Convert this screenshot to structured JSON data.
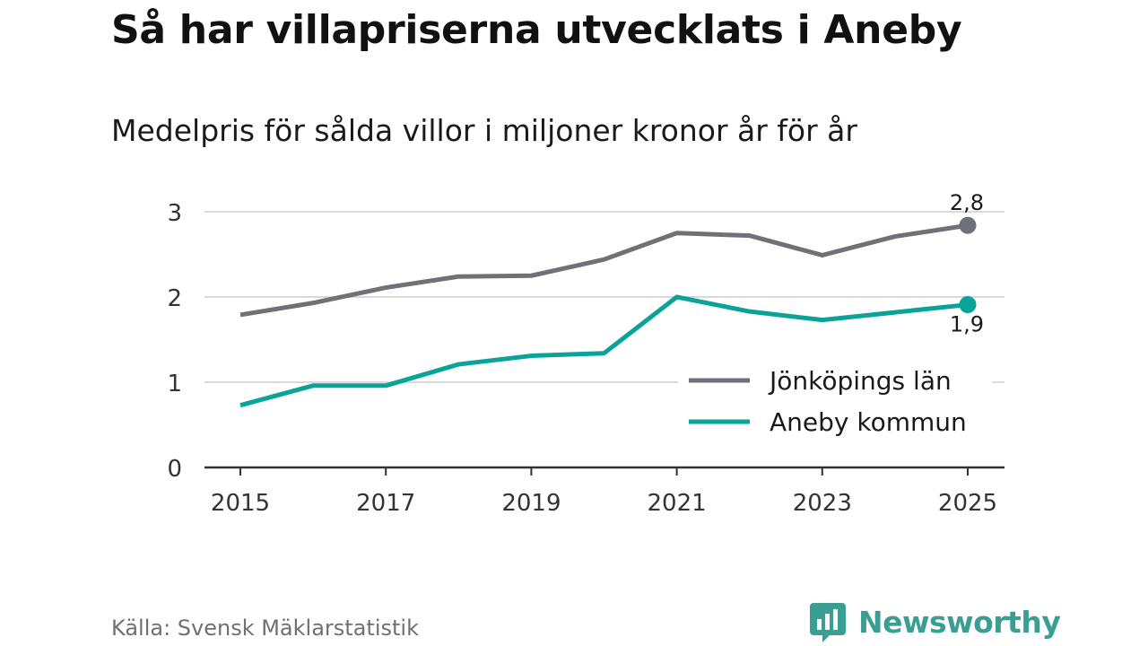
{
  "title": "Så har villapriserna utvecklats i Aneby",
  "subtitle": "Medelpris för sålda villor i miljoner kronor år för år",
  "source": "Källa: Svensk Mäklarstatistik",
  "brand": {
    "name": "Newsworthy",
    "icon": "newsworthy-logo-icon",
    "color": "#3a9e93"
  },
  "chart_data": {
    "type": "line",
    "title": "Så har villapriserna utvecklats i Aneby",
    "subtitle": "Medelpris för sålda villor i miljoner kronor år för år",
    "xlabel": "",
    "ylabel": "",
    "x": [
      2015,
      2016,
      2017,
      2018,
      2019,
      2020,
      2021,
      2022,
      2023,
      2024,
      2025
    ],
    "x_ticks": [
      "2015",
      "2017",
      "2019",
      "2021",
      "2023",
      "2025"
    ],
    "y_ticks": [
      "0",
      "1",
      "2",
      "3"
    ],
    "ylim": [
      0,
      3.2
    ],
    "xlim": [
      2015,
      2025
    ],
    "grid": true,
    "legend_position": "bottom-right",
    "series": [
      {
        "name": "Jönköpings län",
        "color": "#707078",
        "values": [
          1.79,
          1.93,
          2.11,
          2.24,
          2.25,
          2.44,
          2.75,
          2.72,
          2.49,
          2.71,
          2.84
        ],
        "end_label": "2,8"
      },
      {
        "name": "Aneby kommun",
        "color": "#0aa39a",
        "values": [
          0.73,
          0.96,
          0.96,
          1.21,
          1.31,
          1.34,
          2.0,
          1.83,
          1.73,
          1.82,
          1.91
        ],
        "end_label": "1,9"
      }
    ]
  }
}
